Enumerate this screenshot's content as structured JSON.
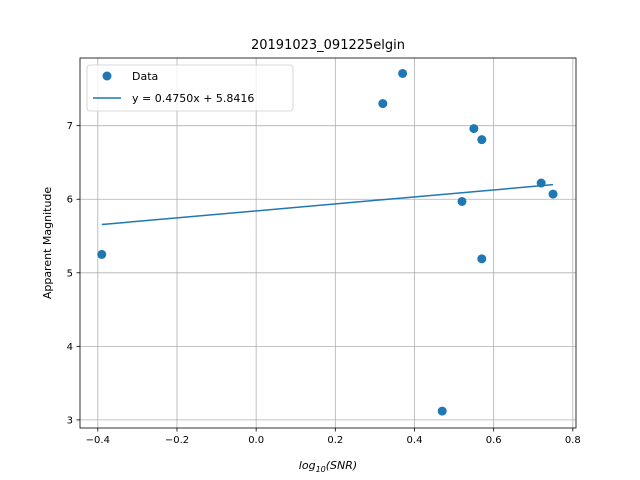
{
  "chart_data": {
    "type": "scatter",
    "title": "20191023_091225elgin",
    "xlabel_base": "log",
    "xlabel_sub": "10",
    "xlabel_arg": "(SNR)",
    "ylabel": "Apparent Magnitude",
    "xlim": [
      -0.445,
      0.808
    ],
    "ylim": [
      2.89,
      7.92
    ],
    "xticks": [
      -0.4,
      -0.2,
      0.0,
      0.2,
      0.4,
      0.6,
      0.8
    ],
    "xtick_labels": [
      "−0.4",
      "−0.2",
      "0.0",
      "0.2",
      "0.4",
      "0.6",
      "0.8"
    ],
    "yticks": [
      3,
      4,
      5,
      6,
      7
    ],
    "ytick_labels": [
      "3",
      "4",
      "5",
      "6",
      "7"
    ],
    "grid": true,
    "legend_position": "top-left",
    "color": "#1f77b4",
    "series": [
      {
        "name": "Data",
        "kind": "scatter",
        "points": [
          {
            "x": -0.39,
            "y": 5.25
          },
          {
            "x": 0.32,
            "y": 7.3
          },
          {
            "x": 0.37,
            "y": 7.71
          },
          {
            "x": 0.47,
            "y": 3.12
          },
          {
            "x": 0.52,
            "y": 5.97
          },
          {
            "x": 0.55,
            "y": 6.96
          },
          {
            "x": 0.57,
            "y": 6.81
          },
          {
            "x": 0.57,
            "y": 5.19
          },
          {
            "x": 0.72,
            "y": 6.22
          },
          {
            "x": 0.75,
            "y": 6.07
          }
        ]
      },
      {
        "name": "y = 0.4750x + 5.8416",
        "kind": "line",
        "slope": 0.475,
        "intercept": 5.8416,
        "x_range": [
          -0.39,
          0.75
        ]
      }
    ]
  }
}
